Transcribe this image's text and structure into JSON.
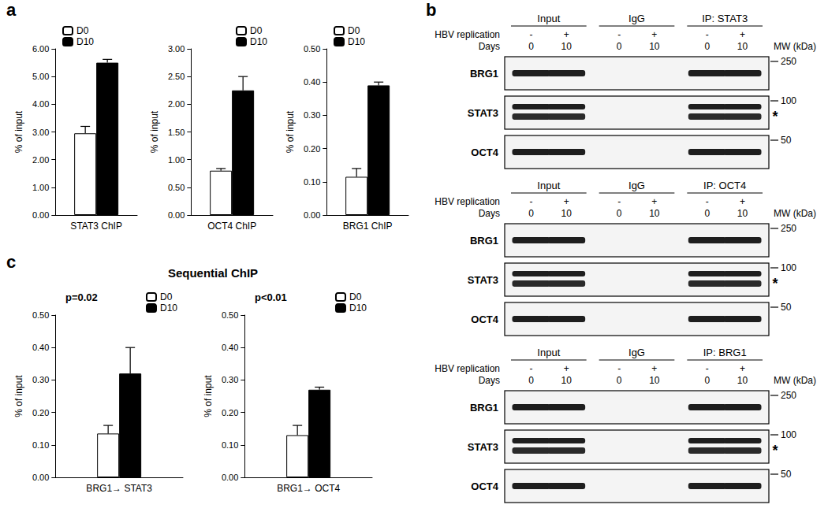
{
  "chart_data": [
    {
      "type": "bar",
      "y_label": "% of input",
      "categories": [
        "STAT3 ChIP"
      ],
      "series": [
        {
          "name": "D0",
          "color": "#ffffff",
          "values": [
            2.95
          ],
          "errors": [
            0.25
          ]
        },
        {
          "name": "D10",
          "color": "#000000",
          "values": [
            5.5
          ],
          "errors": [
            0.12
          ]
        }
      ],
      "ylim": [
        0,
        6
      ],
      "yticks": [
        {
          "value": 0,
          "label": "0.00"
        },
        {
          "value": 1,
          "label": "1.00"
        },
        {
          "value": 2,
          "label": "2.00"
        },
        {
          "value": 3,
          "label": "3.00"
        },
        {
          "value": 4,
          "label": "4.00"
        },
        {
          "value": 5,
          "label": "5.00"
        },
        {
          "value": 6,
          "label": "6.00"
        }
      ],
      "legend": "top-left"
    },
    {
      "type": "bar",
      "y_label": "% of input",
      "categories": [
        "OCT4 ChIP"
      ],
      "series": [
        {
          "name": "D0",
          "color": "#ffffff",
          "values": [
            0.8
          ],
          "errors": [
            0.04
          ]
        },
        {
          "name": "D10",
          "color": "#000000",
          "values": [
            2.25
          ],
          "errors": [
            0.25
          ]
        }
      ],
      "ylim": [
        0,
        3
      ],
      "yticks": [
        {
          "value": 0,
          "label": "0.00"
        },
        {
          "value": 0.5,
          "label": "0.50"
        },
        {
          "value": 1,
          "label": "1.00"
        },
        {
          "value": 1.5,
          "label": "1.50"
        },
        {
          "value": 2,
          "label": "2.00"
        },
        {
          "value": 2.5,
          "label": "2.50"
        },
        {
          "value": 3,
          "label": "3.00"
        }
      ],
      "legend": "top-right"
    },
    {
      "type": "bar",
      "y_label": "% of input",
      "categories": [
        "BRG1 ChIP"
      ],
      "series": [
        {
          "name": "D0",
          "color": "#ffffff",
          "values": [
            0.115
          ],
          "errors": [
            0.025
          ]
        },
        {
          "name": "D10",
          "color": "#000000",
          "values": [
            0.39
          ],
          "errors": [
            0.01
          ]
        }
      ],
      "ylim": [
        0,
        0.5
      ],
      "yticks": [
        {
          "value": 0,
          "label": "0.00"
        },
        {
          "value": 0.1,
          "label": "0.10"
        },
        {
          "value": 0.2,
          "label": "0.20"
        },
        {
          "value": 0.3,
          "label": "0.30"
        },
        {
          "value": 0.4,
          "label": "0.40"
        },
        {
          "value": 0.5,
          "label": "0.50"
        }
      ],
      "legend": "top-left"
    },
    {
      "type": "bar",
      "y_label": "% of input",
      "categories": [
        "BRG1→ STAT3"
      ],
      "series": [
        {
          "name": "D0",
          "color": "#ffffff",
          "values": [
            0.135
          ],
          "errors": [
            0.025
          ]
        },
        {
          "name": "D10",
          "color": "#000000",
          "values": [
            0.32
          ],
          "errors": [
            0.08
          ]
        }
      ],
      "ylim": [
        0,
        0.5
      ],
      "yticks": [
        {
          "value": 0,
          "label": "0.00"
        },
        {
          "value": 0.1,
          "label": "0.10"
        },
        {
          "value": 0.2,
          "label": "0.20"
        },
        {
          "value": 0.3,
          "label": "0.30"
        },
        {
          "value": 0.4,
          "label": "0.40"
        },
        {
          "value": 0.5,
          "label": "0.50"
        }
      ],
      "legend": "top-right",
      "annotations": [
        "p=0.02"
      ]
    },
    {
      "type": "bar",
      "y_label": "% of input",
      "categories": [
        "BRG1→ OCT4"
      ],
      "series": [
        {
          "name": "D0",
          "color": "#ffffff",
          "values": [
            0.13
          ],
          "errors": [
            0.03
          ]
        },
        {
          "name": "D10",
          "color": "#000000",
          "values": [
            0.27
          ],
          "errors": [
            0.008
          ]
        }
      ],
      "ylim": [
        0,
        0.5
      ],
      "yticks": [
        {
          "value": 0,
          "label": "0.00"
        },
        {
          "value": 0.1,
          "label": "0.10"
        },
        {
          "value": 0.2,
          "label": "0.20"
        },
        {
          "value": 0.3,
          "label": "0.30"
        },
        {
          "value": 0.4,
          "label": "0.40"
        },
        {
          "value": 0.5,
          "label": "0.50"
        }
      ],
      "legend": "top-right",
      "annotations": [
        "p<0.01"
      ]
    }
  ],
  "figure": {
    "panel_labels": [
      "a",
      "b",
      "c"
    ],
    "sequential_title": "Sequential ChIP",
    "lane_rows": [
      {
        "label": "HBV replication",
        "lanes": [
          "-",
          "+"
        ]
      },
      {
        "label": "Days",
        "lanes": [
          "0",
          "10"
        ]
      }
    ],
    "mw_label": "MW (kDa)",
    "rows": [
      {
        "label": "BRG1",
        "mw": "250"
      },
      {
        "label": "STAT3",
        "mw": "100",
        "star": "*"
      },
      {
        "label": "OCT4",
        "mw": "50"
      }
    ],
    "blots": [
      {
        "groups": [
          {
            "name": "Input",
            "bands": true
          },
          {
            "name": "IgG",
            "bands": false
          },
          {
            "name": "IP: STAT3",
            "bands": true
          }
        ]
      },
      {
        "groups": [
          {
            "name": "Input",
            "bands": true
          },
          {
            "name": "IgG",
            "bands": false
          },
          {
            "name": "IP: OCT4",
            "bands": true
          }
        ]
      },
      {
        "groups": [
          {
            "name": "Input",
            "bands": true
          },
          {
            "name": "IgG",
            "bands": false
          },
          {
            "name": "IP: BRG1",
            "bands": true
          }
        ]
      }
    ]
  }
}
